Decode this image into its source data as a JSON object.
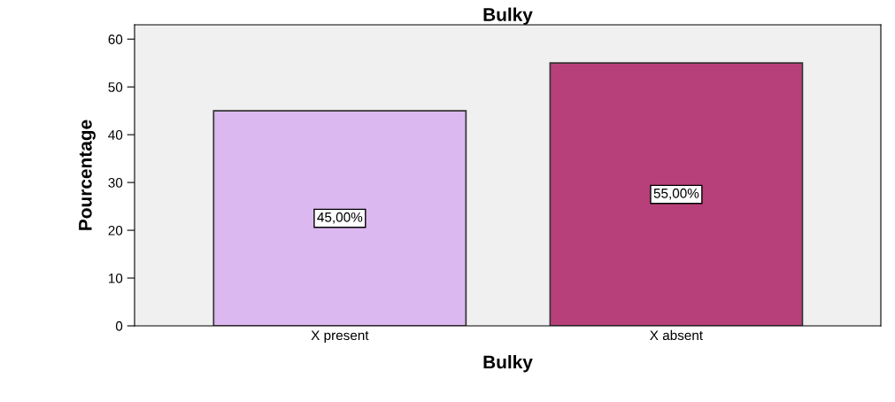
{
  "chart_data": {
    "type": "bar",
    "title": "Bulky",
    "xlabel": "Bulky",
    "ylabel": "Pourcentage",
    "categories": [
      "X present",
      "X absent"
    ],
    "values": [
      45,
      55
    ],
    "colors": [
      "#dcb8f0",
      "#b8407a"
    ],
    "value_labels": [
      "45,00%",
      "55,00%"
    ],
    "ylim": [
      0,
      63
    ],
    "yticks": [
      0,
      10,
      20,
      30,
      40,
      50,
      60
    ],
    "grid": false,
    "legend": false
  }
}
